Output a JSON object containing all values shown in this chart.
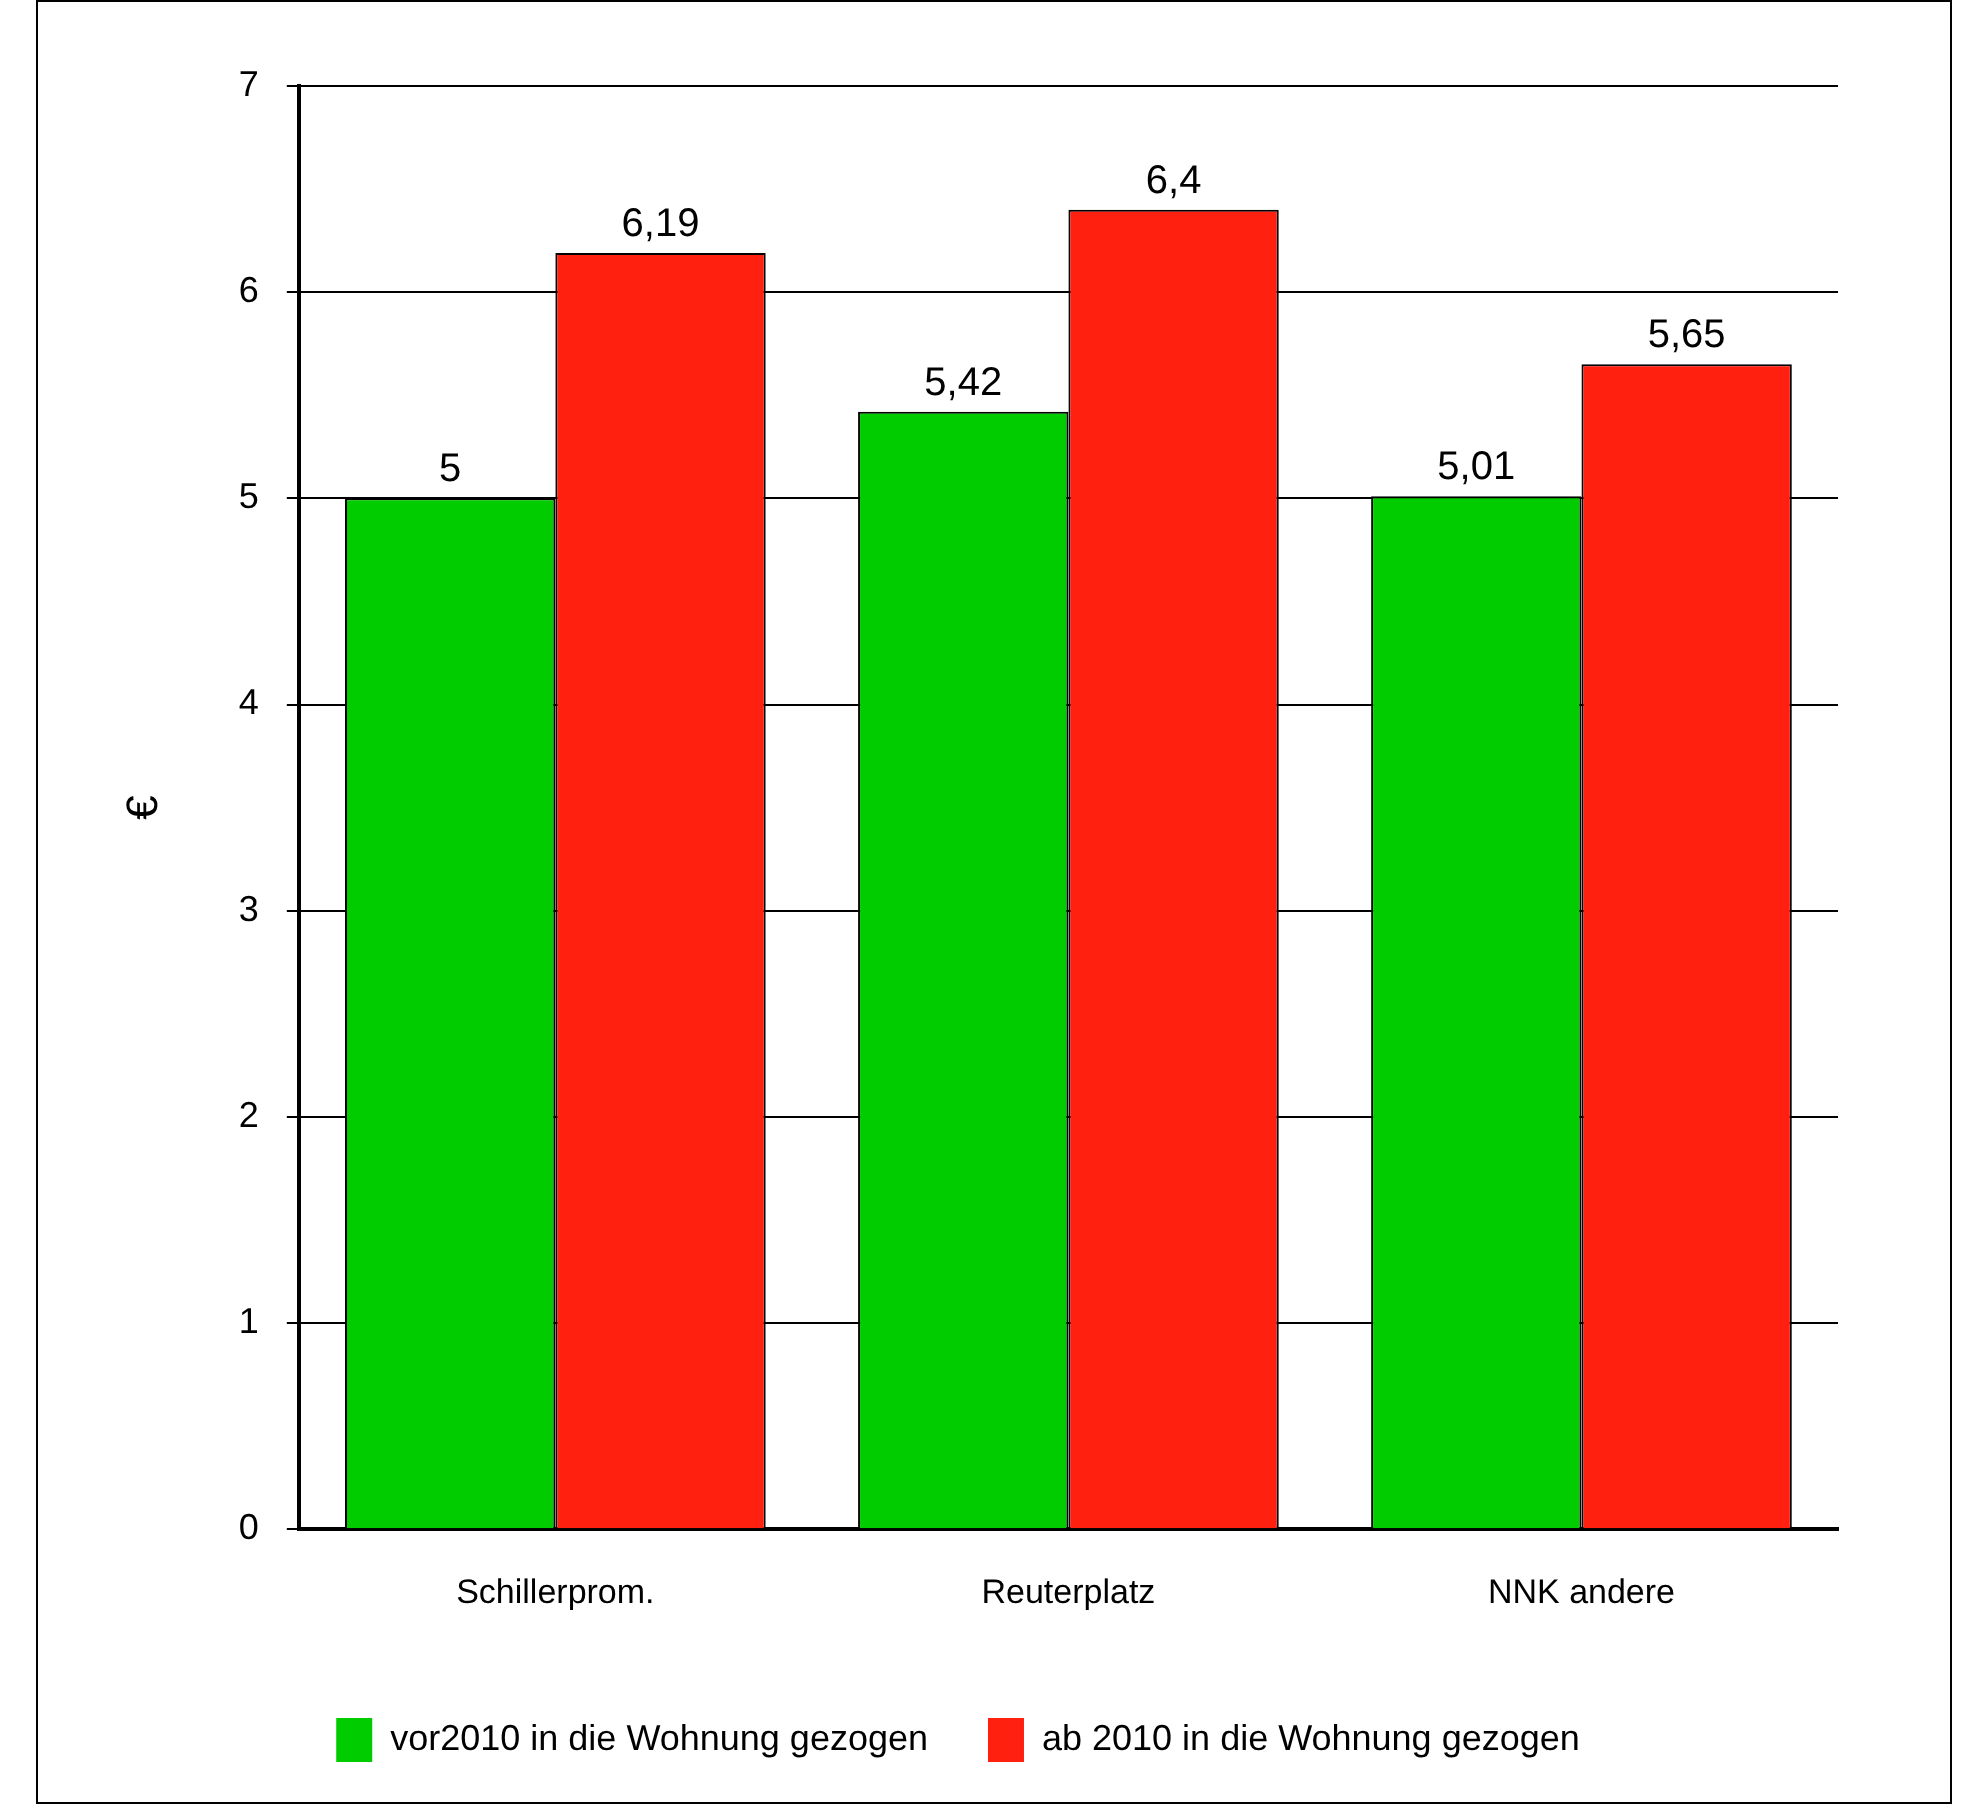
{
  "chart_data": {
    "type": "bar",
    "ylabel": "€",
    "categories": [
      "Schillerprom.",
      "Reuterplatz",
      "NNK andere"
    ],
    "series": [
      {
        "name": "vor2010 in die Wohnung gezogen",
        "color": "#00cc00",
        "values": [
          5,
          5.42,
          5.01
        ],
        "value_labels": [
          "5",
          "5,42",
          "5,01"
        ]
      },
      {
        "name": "ab 2010 in die Wohnung gezogen",
        "color": "#ff2010",
        "values": [
          6.19,
          6.4,
          5.65
        ],
        "value_labels": [
          "6,19",
          "6,4",
          "5,65"
        ]
      }
    ],
    "ylim": [
      0,
      7
    ],
    "yticks": [
      0,
      1,
      2,
      3,
      4,
      5,
      6,
      7
    ],
    "grid": "y",
    "legend": "bottom"
  }
}
